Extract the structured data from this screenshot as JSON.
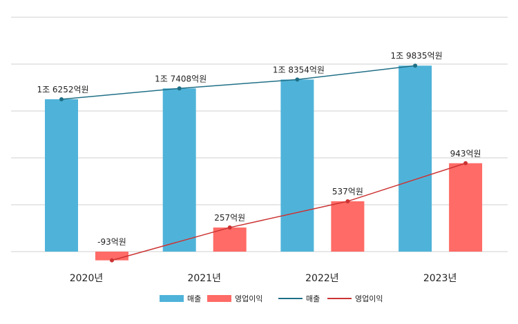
{
  "chart_data": {
    "type": "bar",
    "categories": [
      "2020년",
      "2021년",
      "2022년",
      "2023년"
    ],
    "series": [
      {
        "name": "매출",
        "kind": "bar",
        "axis": "left",
        "values": [
          16252,
          17408,
          18354,
          19835
        ],
        "labels": [
          "1조 6252억원",
          "1조 7408억원",
          "1조 8354억원",
          "1조 9835억원"
        ],
        "color": "#4fb3d9"
      },
      {
        "name": "영업이익",
        "kind": "bar",
        "axis": "right",
        "values": [
          -93,
          257,
          537,
          943
        ],
        "labels": [
          "-93억원",
          "257억원",
          "537억원",
          "943억원"
        ],
        "color": "#ff6b66"
      },
      {
        "name": "매출",
        "kind": "line",
        "axis": "left",
        "values": [
          16252,
          17408,
          18354,
          19835
        ],
        "color": "#1f6f86"
      },
      {
        "name": "영업이익",
        "kind": "line",
        "axis": "right",
        "values": [
          -93,
          257,
          537,
          943
        ],
        "color": "#cc3333"
      }
    ],
    "ylim_left": [
      0,
      25000
    ],
    "ylim_right": [
      0,
      2500
    ],
    "grid": true,
    "legend": "bottom",
    "xlabel": "",
    "ylabel": "",
    "title": ""
  }
}
